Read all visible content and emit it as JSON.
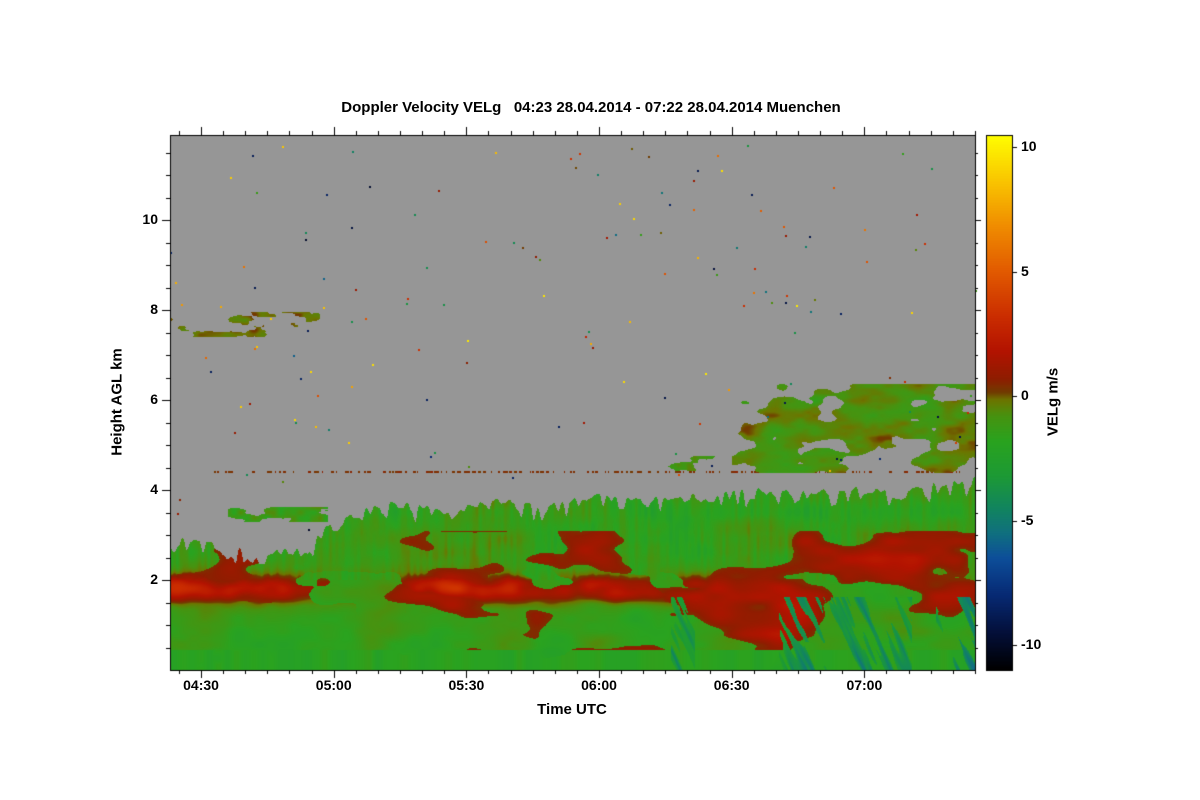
{
  "chart_data": {
    "type": "heatmap",
    "title": "Doppler Velocity VELg   04:23 28.04.2014 - 07:22 28.04.2014 Muenchen",
    "xlabel": "Time UTC",
    "ylabel": "Height AGL km",
    "x_ticks": [
      "04:30",
      "05:00",
      "05:30",
      "06:00",
      "06:30",
      "07:00"
    ],
    "x_range_hours": [
      4.383,
      7.417
    ],
    "y_ticks": [
      2,
      4,
      6,
      8,
      10
    ],
    "y_range_km": [
      0,
      11.89
    ],
    "grid": false,
    "legend_position": "none",
    "colorbar": {
      "label": "VELg m/s",
      "ticks": [
        10,
        5,
        0,
        -5,
        -10
      ],
      "range": [
        -11,
        10.5
      ]
    },
    "no_data_color": "#969696",
    "colormap_stops": [
      [
        -11,
        "#000000"
      ],
      [
        -9.5,
        "#04103a"
      ],
      [
        -8,
        "#072a74"
      ],
      [
        -6.5,
        "#0d4f9a"
      ],
      [
        -5.5,
        "#10707f"
      ],
      [
        -4.5,
        "#12855f"
      ],
      [
        -3.2,
        "#1d9a35"
      ],
      [
        -1.8,
        "#2aa31f"
      ],
      [
        -0.8,
        "#479310"
      ],
      [
        -0.15,
        "#6d7500"
      ],
      [
        0.15,
        "#713c00"
      ],
      [
        0.7,
        "#8f1d00"
      ],
      [
        1.8,
        "#b31300"
      ],
      [
        3.2,
        "#cb2d00"
      ],
      [
        5,
        "#e25a00"
      ],
      [
        6.8,
        "#f08c00"
      ],
      [
        8.5,
        "#f9c100"
      ],
      [
        10.5,
        "#ffff00"
      ]
    ],
    "features": {
      "main_region_top_km": [
        [
          4.383,
          2.95
        ],
        [
          4.55,
          2.9
        ],
        [
          4.7,
          2.65
        ],
        [
          4.9,
          2.75
        ],
        [
          5.0,
          3.5
        ],
        [
          5.2,
          3.75
        ],
        [
          5.4,
          3.65
        ],
        [
          5.6,
          3.85
        ],
        [
          5.8,
          3.7
        ],
        [
          6.0,
          3.95
        ],
        [
          6.2,
          3.85
        ],
        [
          6.4,
          3.95
        ],
        [
          6.6,
          4.05
        ],
        [
          6.8,
          4.0
        ],
        [
          7.0,
          4.15
        ],
        [
          7.2,
          4.1
        ],
        [
          7.417,
          4.35
        ]
      ],
      "spike_depth_km": 0.5,
      "base_velocity": -1.4,
      "surface_band": {
        "center_km": 1.8,
        "width_km": 0.235,
        "end_hour": 6.45,
        "velocity": 2.2
      },
      "fall_streaks": {
        "start_hour": 6.12,
        "top_km": 1.62,
        "velocity": -4.5
      },
      "elevated_cloud": {
        "start_hour": 6.5,
        "bottom_km": 4.38,
        "top_km": 6.35,
        "center_km": 5.3,
        "velocity": -0.8
      },
      "detached_patch": {
        "t": [
          4.6,
          4.98
        ],
        "h": [
          3.3,
          3.62
        ]
      },
      "morning_patches": {
        "t": [
          4.35,
          4.95
        ],
        "h": [
          7.4,
          7.95
        ],
        "velocity": -0.2
      },
      "dotted_line_km": 4.4,
      "speckle_count": 150
    }
  }
}
